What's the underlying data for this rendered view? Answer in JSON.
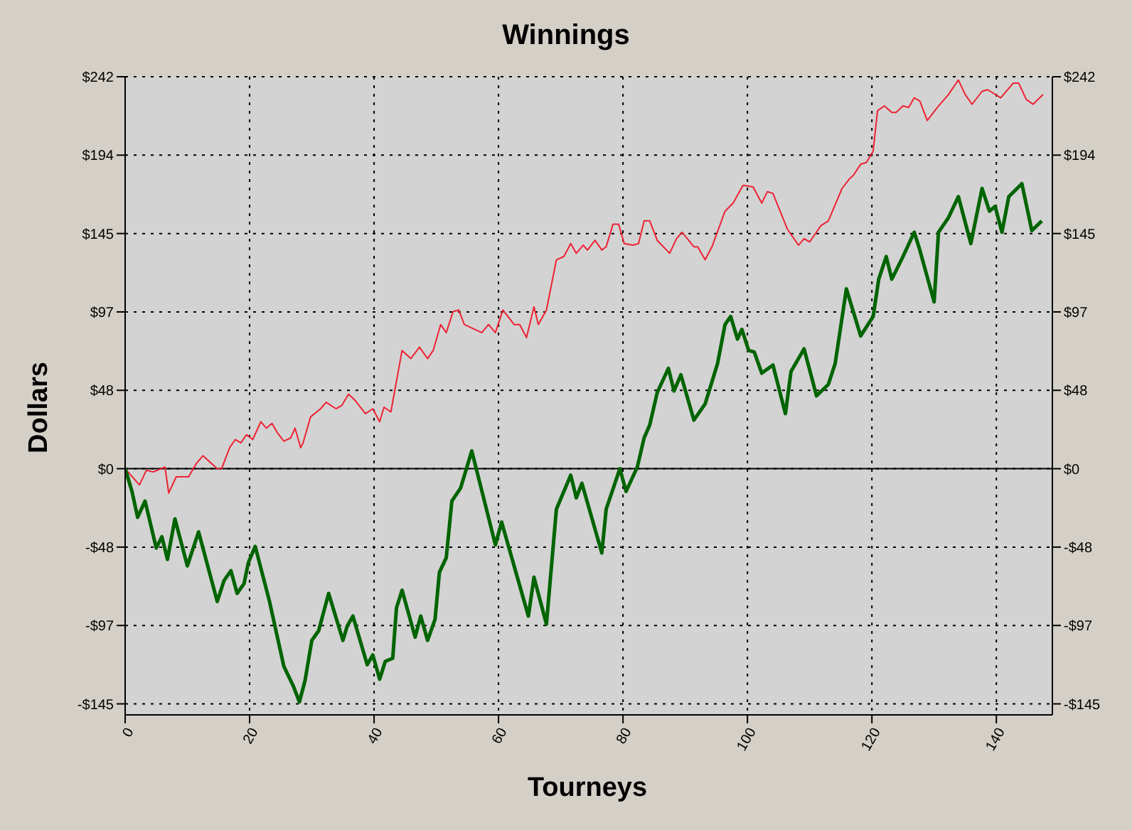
{
  "chart_data": {
    "type": "line",
    "title": "Winnings",
    "xlabel": "Tourneys",
    "ylabel": "Dollars",
    "xlim": [
      0,
      149
    ],
    "xticks": [
      0,
      20,
      40,
      60,
      80,
      100,
      120,
      140
    ],
    "ylim": [
      -152,
      242
    ],
    "yticks": [
      {
        "value": -145.2,
        "label": "-$145"
      },
      {
        "value": -96.8,
        "label": "-$97"
      },
      {
        "value": -48.4,
        "label": "-$48"
      },
      {
        "value": 0,
        "label": "$0"
      },
      {
        "value": 48.4,
        "label": "$48"
      },
      {
        "value": 96.8,
        "label": "$97"
      },
      {
        "value": 145.2,
        "label": "$145"
      },
      {
        "value": 193.6,
        "label": "$194"
      },
      {
        "value": 242,
        "label": "$242"
      }
    ],
    "y2lim": [
      -152,
      242
    ],
    "y2ticks": [
      {
        "value": -145.2,
        "label": "-$145"
      },
      {
        "value": -96.8,
        "label": "-$97"
      },
      {
        "value": -48.4,
        "label": "-$48"
      },
      {
        "value": 0,
        "label": "$0"
      },
      {
        "value": 48.4,
        "label": "$48"
      },
      {
        "value": 96.8,
        "label": "$97"
      },
      {
        "value": 145.2,
        "label": "$145"
      },
      {
        "value": 193.6,
        "label": "$194"
      },
      {
        "value": 242,
        "label": "$242"
      }
    ],
    "grid": true,
    "marker": "none",
    "line_style": "solid",
    "ref_lines": [
      {
        "axis": "y",
        "value": 0,
        "color": "#000000"
      }
    ],
    "series": [
      {
        "color": "#ee2233",
        "x": [
          0,
          2.3,
          3.4,
          4.5,
          6.4,
          7,
          8.2,
          10.2,
          11.4,
          12.5,
          14.8,
          15.5,
          16.8,
          17.7,
          18.6,
          19.5,
          20.5,
          21.8,
          22.7,
          23.6,
          24.5,
          25.5,
          26.6,
          27.3,
          28.2,
          28.6,
          29.8,
          31.4,
          32.3,
          33.9,
          34.8,
          35.9,
          37,
          38.6,
          39.8,
          40.9,
          41.6,
          42.7,
          44.5,
          45.9,
          47.3,
          48.6,
          49.5,
          50.7,
          51.6,
          52.7,
          53.6,
          54.5,
          57.3,
          58.4,
          59.5,
          60.7,
          62.5,
          63.4,
          64.5,
          65.7,
          66.4,
          67.7,
          69.3,
          70.5,
          71.6,
          72.5,
          73.6,
          74.3,
          75.5,
          76.6,
          77.3,
          78.4,
          79.3,
          80.2,
          81.6,
          82.5,
          83.4,
          84.3,
          85.5,
          87.5,
          88.6,
          89.5,
          91.4,
          92,
          93.2,
          94.3,
          96.4,
          97.7,
          99.3,
          100.9,
          102.3,
          103.2,
          104.1,
          106.4,
          108.2,
          109.1,
          110,
          111.8,
          113,
          115.2,
          116.4,
          117,
          118.2,
          119.1,
          120.2,
          120.9,
          122,
          123.2,
          123.9,
          125,
          125.9,
          126.8,
          127.7,
          128.9,
          130.5,
          132.3,
          133.9,
          135,
          136.1,
          137.7,
          138.6,
          140.7,
          142.7,
          143.6,
          144.8,
          145.9,
          147.5
        ],
        "values": [
          0,
          -10,
          -1,
          -2,
          1,
          -15,
          -5,
          -5,
          3,
          8,
          0,
          0,
          13,
          18,
          16,
          21,
          18,
          29,
          25,
          28,
          22,
          17,
          19,
          25,
          13,
          16,
          32,
          37,
          41,
          37,
          39,
          46,
          42,
          34,
          37,
          29,
          38,
          35,
          73,
          68,
          75,
          68,
          73,
          89,
          84,
          97,
          98,
          89,
          84,
          89,
          84,
          98,
          89,
          89,
          81,
          100,
          89,
          98,
          129,
          131,
          139,
          133,
          138,
          135,
          141,
          135,
          137,
          151,
          151,
          139,
          138,
          139,
          153,
          153,
          141,
          133,
          142,
          146,
          137,
          137,
          129,
          137,
          159,
          164,
          175,
          174,
          164,
          171,
          170,
          148,
          138,
          142,
          140,
          150,
          153,
          173,
          179,
          181,
          188,
          189,
          196,
          221,
          224,
          220,
          220,
          224,
          223,
          229,
          227,
          215,
          223,
          231,
          240,
          231,
          225,
          233,
          234,
          229,
          238,
          238,
          228,
          225,
          231
        ]
      },
      {
        "color": "#006400",
        "x": [
          0,
          1.1,
          2,
          3.2,
          5,
          5.9,
          6.8,
          8,
          10,
          11.8,
          14.8,
          15.9,
          17,
          18,
          19.1,
          19.8,
          20.9,
          23.2,
          25.5,
          27,
          28,
          28.9,
          30,
          31.1,
          32.7,
          35,
          35.7,
          36.6,
          38.9,
          39.8,
          40.9,
          41.8,
          43,
          43.6,
          44.5,
          46.6,
          47.5,
          48.6,
          49.8,
          50.5,
          51.6,
          52.5,
          53.9,
          55.7,
          59.5,
          60.5,
          64.8,
          65.7,
          67.7,
          69.3,
          71.6,
          72.5,
          73.4,
          76.6,
          77.3,
          79.5,
          80.5,
          82.3,
          83.4,
          84.3,
          85.5,
          87.3,
          88.2,
          89.3,
          91.4,
          93.2,
          95.2,
          96.4,
          97.3,
          98.4,
          99.1,
          100.2,
          101.1,
          102.3,
          104.1,
          106.1,
          107,
          109.1,
          111.1,
          113,
          114.1,
          115.9,
          118.2,
          120.2,
          121.1,
          122.3,
          123.2,
          125,
          126.8,
          127.7,
          130,
          130.7,
          132.3,
          133.9,
          135.9,
          137.7,
          138.9,
          139.8,
          140.9,
          142,
          144.1,
          145.7,
          147.3
        ],
        "values": [
          0,
          -14,
          -30,
          -20,
          -49,
          -42,
          -56,
          -31,
          -60,
          -39,
          -82,
          -69,
          -63,
          -77,
          -71,
          -58,
          -48,
          -82,
          -122,
          -134,
          -144,
          -131,
          -106,
          -100,
          -77,
          -106,
          -97,
          -91,
          -121,
          -115,
          -130,
          -119,
          -117,
          -86,
          -75,
          -104,
          -91,
          -106,
          -93,
          -64,
          -55,
          -20,
          -12,
          11,
          -47,
          -33,
          -91,
          -67,
          -96,
          -25,
          -4,
          -18,
          -9,
          -52,
          -25,
          0,
          -14,
          1,
          19,
          27,
          47,
          62,
          48,
          58,
          30,
          40,
          65,
          89,
          94,
          80,
          86,
          73,
          72,
          59,
          64,
          34,
          60,
          74,
          45,
          52,
          65,
          111,
          82,
          94,
          117,
          131,
          117,
          131,
          146,
          135,
          103,
          146,
          155,
          168,
          139,
          173,
          159,
          162,
          146,
          168,
          176,
          147,
          153
        ]
      }
    ]
  }
}
